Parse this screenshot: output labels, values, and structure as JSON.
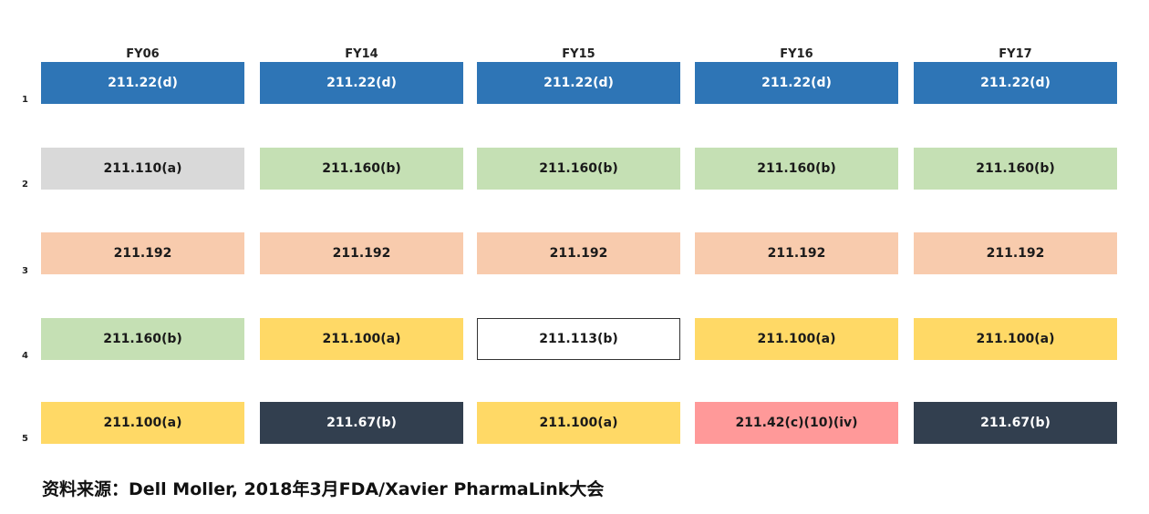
{
  "columns": [
    "FY06",
    "FY14",
    "FY15",
    "FY16",
    "FY17"
  ],
  "rows": [
    "1",
    "2",
    "3",
    "4",
    "5"
  ],
  "palette": {
    "blue": "#2e75b6",
    "gray": "#d9d9d9",
    "green": "#c5e0b4",
    "peach": "#f8cbad",
    "yellow": "#ffd966",
    "white": "#ffffff",
    "navy": "#323f4f",
    "pink": "#ff9999"
  },
  "cells": [
    [
      {
        "text": "211.22(d)",
        "color": "blue"
      },
      {
        "text": "211.22(d)",
        "color": "blue"
      },
      {
        "text": "211.22(d)",
        "color": "blue"
      },
      {
        "text": "211.22(d)",
        "color": "blue"
      },
      {
        "text": "211.22(d)",
        "color": "blue"
      }
    ],
    [
      {
        "text": "211.110(a)",
        "color": "gray"
      },
      {
        "text": "211.160(b)",
        "color": "green"
      },
      {
        "text": "211.160(b)",
        "color": "green"
      },
      {
        "text": "211.160(b)",
        "color": "green"
      },
      {
        "text": "211.160(b)",
        "color": "green"
      }
    ],
    [
      {
        "text": "211.192",
        "color": "peach"
      },
      {
        "text": "211.192",
        "color": "peach"
      },
      {
        "text": "211.192",
        "color": "peach"
      },
      {
        "text": "211.192",
        "color": "peach"
      },
      {
        "text": "211.192",
        "color": "peach"
      }
    ],
    [
      {
        "text": "211.160(b)",
        "color": "green"
      },
      {
        "text": "211.100(a)",
        "color": "yellow"
      },
      {
        "text": "211.113(b)",
        "color": "white"
      },
      {
        "text": "211.100(a)",
        "color": "yellow"
      },
      {
        "text": "211.100(a)",
        "color": "yellow"
      }
    ],
    [
      {
        "text": "211.100(a)",
        "color": "yellow"
      },
      {
        "text": "211.67(b)",
        "color": "navy"
      },
      {
        "text": "211.100(a)",
        "color": "yellow"
      },
      {
        "text": "211.42(c)(10)(iv)",
        "color": "pink"
      },
      {
        "text": "211.67(b)",
        "color": "navy"
      }
    ]
  ],
  "footer": "资料来源：Dell Moller, 2018年3月FDA/Xavier PharmaLink大会"
}
